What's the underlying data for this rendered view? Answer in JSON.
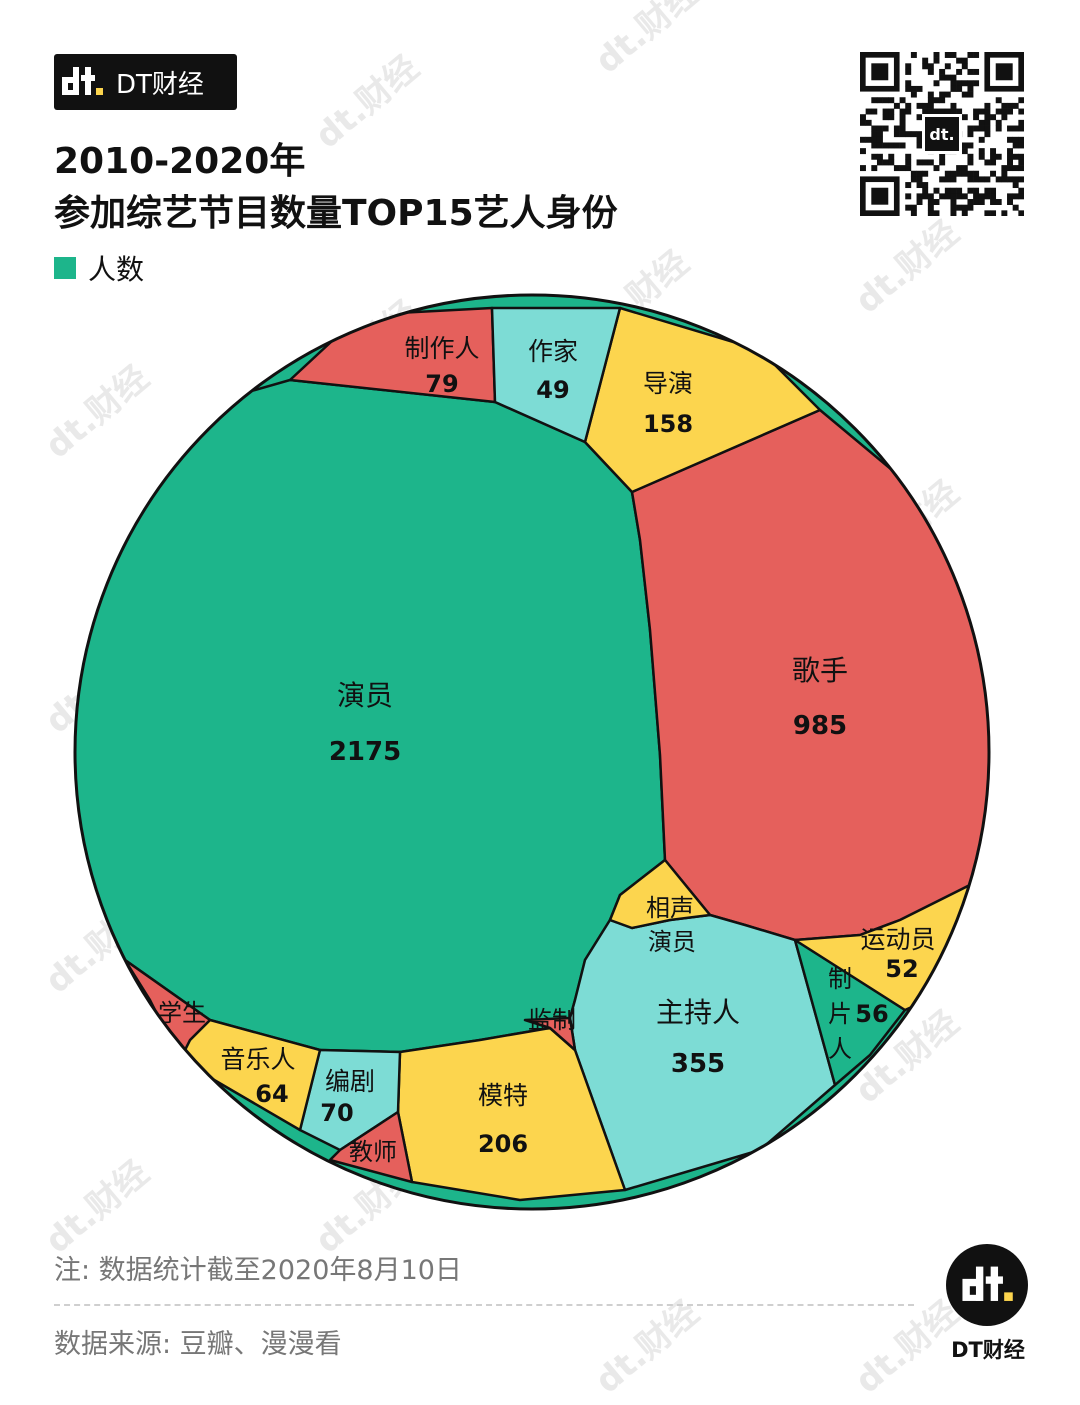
{
  "brand": {
    "name": "DT财经"
  },
  "title": {
    "line1": "2010-2020年",
    "line2": "参加综艺节目数量TOP15艺人身份"
  },
  "legend": {
    "label": "人数",
    "color": "#1db58b"
  },
  "watermark": "dt.财经",
  "colors": {
    "green": "#1db58b",
    "red": "#e5605c",
    "yellow": "#fcd54e",
    "teal": "#7ddcd5"
  },
  "chart_data": {
    "type": "voronoi-treemap",
    "unit": "人数",
    "cells": [
      {
        "name": "演员",
        "value": 2175,
        "color": "green"
      },
      {
        "name": "歌手",
        "value": 985,
        "color": "red"
      },
      {
        "name": "主持人",
        "value": 355,
        "color": "teal"
      },
      {
        "name": "模特",
        "value": 206,
        "color": "yellow"
      },
      {
        "name": "导演",
        "value": 158,
        "color": "yellow"
      },
      {
        "name": "制作人",
        "value": 79,
        "color": "red"
      },
      {
        "name": "编剧",
        "value": 70,
        "color": "teal"
      },
      {
        "name": "音乐人",
        "value": 64,
        "color": "yellow"
      },
      {
        "name": "制片人",
        "value": 56,
        "color": "green"
      },
      {
        "name": "运动员",
        "value": 52,
        "color": "yellow"
      },
      {
        "name": "作家",
        "value": 49,
        "color": "teal"
      },
      {
        "name": "监制",
        "color": "red"
      },
      {
        "name": "教师",
        "color": "red"
      },
      {
        "name": "学生",
        "color": "red"
      },
      {
        "name": "相声演员",
        "color": "yellow"
      }
    ]
  },
  "footer": {
    "note": "注: 数据统计截至2020年8月10日",
    "source": "数据来源: 豆瓣、漫漫看",
    "logo_text": "DT财经"
  }
}
